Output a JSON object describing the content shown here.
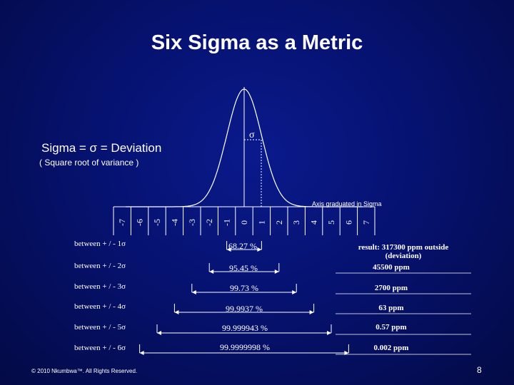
{
  "title": "Six Sigma as a Metric",
  "sigma_definition": "Sigma = σ = Deviation",
  "sigma_subtitle": "( Square root of variance )",
  "sigma_symbol": "σ",
  "axis_caption": "Axis graduated in Sigma",
  "axis_ticks": [
    "-7",
    "-6",
    "-5",
    "-4",
    "-3",
    "-2",
    "-1",
    "0",
    "1",
    "2",
    "3",
    "4",
    "5",
    "6",
    "7"
  ],
  "rows": [
    {
      "label": "between + / - 1σ",
      "percent": "68.27 %",
      "ppm": "result: 317300 ppm outside",
      "ppm_note": "(deviation)"
    },
    {
      "label": "between + / - 2σ",
      "percent": "95.45 %",
      "ppm": "45500 ppm"
    },
    {
      "label": "between + / - 3σ",
      "percent": "99.73 %",
      "ppm": "2700 ppm"
    },
    {
      "label": "between + / - 4σ",
      "percent": "99.9937 %",
      "ppm": "63 ppm"
    },
    {
      "label": "between + / - 5σ",
      "percent": "99.999943 %",
      "ppm": "0.57 ppm"
    },
    {
      "label": "between + / - 6σ",
      "percent": "99.9999998 %",
      "ppm": "0.002 ppm"
    }
  ],
  "copyright": "© 2010 Nkumbwa™. All Rights Reserved.",
  "page_number": "8",
  "colors": {
    "background": "#061270",
    "foreground": "#ffffff"
  }
}
